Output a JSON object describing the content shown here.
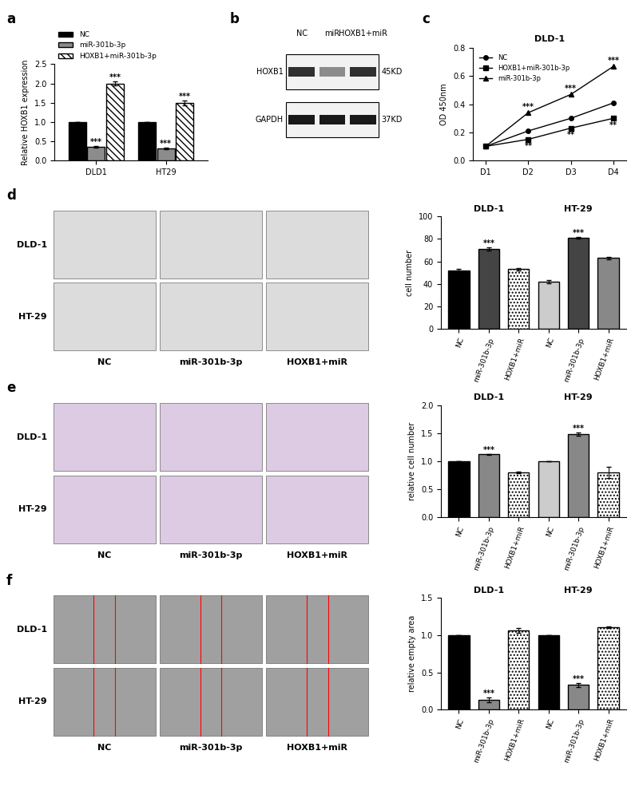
{
  "chart_data": [
    {
      "panel": "a",
      "type": "bar",
      "ylabel": "Relative HOXB1 expression",
      "categories": [
        "DLD1",
        "HT29"
      ],
      "series": [
        {
          "name": "NC",
          "color": "#000000",
          "values": [
            1.0,
            1.0
          ],
          "errors": [
            0,
            0
          ],
          "annotations": [
            null,
            null
          ]
        },
        {
          "name": "miR-301b-3p",
          "color": "#8c8c8c",
          "values": [
            0.35,
            0.32
          ],
          "errors": [
            0.02,
            0.02
          ],
          "annotations": [
            "***",
            "***"
          ]
        },
        {
          "name": "HOXB1+miR-301b-3p",
          "color": "#ffffff",
          "values": [
            2.0,
            1.5
          ],
          "errors": [
            0.06,
            0.06
          ],
          "annotations": [
            "***",
            "***"
          ]
        }
      ],
      "ylim": [
        0,
        2.5
      ],
      "yticks": [
        {
          "value": 0,
          "label": "0.0"
        },
        0.5,
        {
          "value": 1,
          "label": "1.0"
        },
        1.5,
        {
          "value": 2,
          "label": "2.0"
        },
        2.5
      ],
      "legend": "upper left"
    },
    {
      "panel": "c",
      "type": "line",
      "title": "DLD-1",
      "ylabel": "OD 450nm",
      "categories": [
        "D1",
        "D2",
        "D3",
        "D4"
      ],
      "series": [
        {
          "name": "NC",
          "color": "#000000",
          "marker": "circle",
          "values": [
            0.1,
            0.21,
            0.3,
            0.41
          ],
          "annotations": [
            null,
            null,
            null,
            null
          ]
        },
        {
          "name": "HOXB1+miR-301b-3p",
          "color": "#000000",
          "marker": "square",
          "values": [
            0.1,
            0.15,
            0.23,
            0.3
          ],
          "annotations": [
            null,
            "**",
            "**",
            "**"
          ]
        },
        {
          "name": "miR-301b-3p",
          "color": "#000000",
          "marker": "triangle",
          "values": [
            0.1,
            0.34,
            0.47,
            0.67
          ],
          "annotations": [
            null,
            "***",
            "***",
            "***"
          ]
        }
      ],
      "ylim": [
        0,
        0.8
      ],
      "yticks": [
        {
          "value": 0,
          "label": "0.0"
        },
        0.2,
        0.4,
        0.6,
        0.8
      ],
      "legend": "upper left"
    },
    {
      "panel": "d",
      "type": "bar",
      "ylabel": "cell number",
      "groups": [
        "DLD-1",
        "HT-29"
      ],
      "categories": [
        "NC",
        "miR-301b-3p",
        "HOXB1+miR",
        "NC",
        "miR-301b-3p",
        "HOXB1+miR"
      ],
      "values": [
        52,
        71,
        53,
        42,
        81,
        63
      ],
      "errors": [
        1.5,
        1.2,
        1.0,
        1.2,
        1.0,
        1.0
      ],
      "annotations": [
        null,
        "***",
        null,
        null,
        "***",
        null
      ],
      "colors": [
        "#000000",
        "#444444",
        "#ffffff",
        "#cccccc",
        "#444444",
        "#888888"
      ],
      "ylim": [
        0,
        100
      ],
      "yticks": [
        0,
        20,
        40,
        60,
        80,
        100
      ]
    },
    {
      "panel": "e",
      "type": "bar",
      "ylabel": "relative cell number",
      "groups": [
        "DLD-1",
        "HT-29"
      ],
      "categories": [
        "NC",
        "miR-301b-3p",
        "HOXB1+miR",
        "NC",
        "miR-301b-3p",
        "HOXB1+miR"
      ],
      "values": [
        1.0,
        1.12,
        0.8,
        1.0,
        1.48,
        0.8
      ],
      "errors": [
        0,
        0.01,
        0.02,
        0,
        0.03,
        0.1
      ],
      "annotations": [
        null,
        "***",
        null,
        null,
        "***",
        null
      ],
      "colors": [
        "#000000",
        "#888888",
        "#ffffff",
        "#cccccc",
        "#888888",
        "#ffffff"
      ],
      "ylim": [
        0,
        2.0
      ],
      "yticks": [
        {
          "value": 0,
          "label": "0.0"
        },
        0.5,
        {
          "value": 1,
          "label": "1.0"
        },
        1.5,
        {
          "value": 2,
          "label": "2.0"
        }
      ]
    },
    {
      "panel": "f",
      "type": "bar",
      "ylabel": "relative empty area",
      "groups": [
        "DLD-1",
        "HT-29"
      ],
      "categories": [
        "NC",
        "miR-301b-3p",
        "HOXB1+miR",
        "NC",
        "miR-301b-3p",
        "HOXB1+miR"
      ],
      "values": [
        1.0,
        0.13,
        1.06,
        1.0,
        0.33,
        1.1
      ],
      "errors": [
        0,
        0.03,
        0.03,
        0,
        0.03,
        0.01
      ],
      "annotations": [
        null,
        "***",
        null,
        null,
        "***",
        null
      ],
      "colors": [
        "#000000",
        "#888888",
        "#ffffff",
        "#000000",
        "#888888",
        "#ffffff"
      ],
      "ylim": [
        0,
        1.5
      ],
      "yticks": [
        {
          "value": 0,
          "label": "0.0"
        },
        0.5,
        {
          "value": 1,
          "label": "1.0"
        },
        1.5
      ]
    }
  ],
  "blot": {
    "panel": "b",
    "lanes": [
      "NC",
      "miR",
      "HOXB1+miR"
    ],
    "rows": [
      {
        "name": "HOXB1",
        "size": "45KD",
        "intensity": [
          0.9,
          0.5,
          0.9
        ]
      },
      {
        "name": "GAPDH",
        "size": "37KD",
        "intensity": [
          1.0,
          1.0,
          1.0
        ]
      }
    ]
  },
  "images": [
    {
      "panel": "d",
      "rows": [
        "DLD-1",
        "HT-29"
      ],
      "columns": [
        "NC",
        "miR-301b-3p",
        "HOXB1+miR"
      ]
    },
    {
      "panel": "e",
      "rows": [
        "DLD-1",
        "HT-29"
      ],
      "columns": [
        "NC",
        "miR-301b-3p",
        "HOXB1+miR"
      ]
    },
    {
      "panel": "f",
      "rows": [
        "DLD-1",
        "HT-29"
      ],
      "columns": [
        "NC",
        "miR-301b-3p",
        "HOXB1+miR"
      ]
    }
  ]
}
